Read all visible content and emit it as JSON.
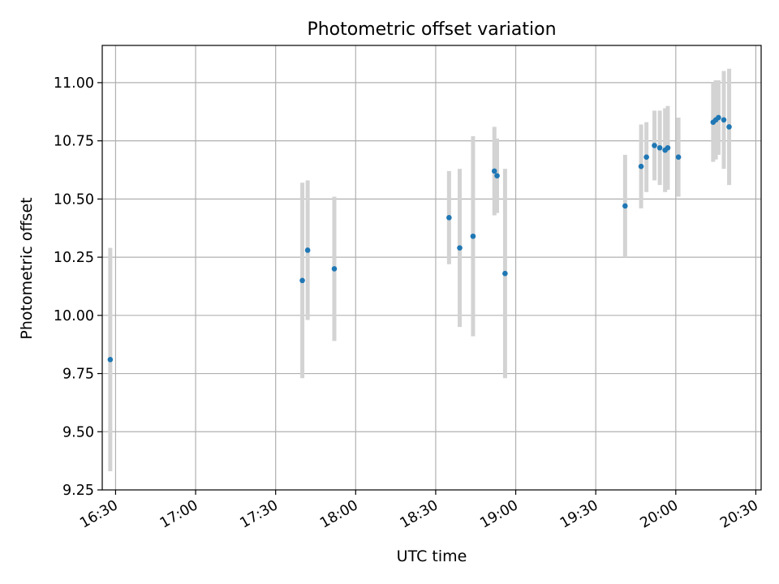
{
  "chart_data": {
    "type": "scatter",
    "title": "Photometric offset variation",
    "xlabel": "UTC time",
    "ylabel": "Photometric offset",
    "x_range_minutes": [
      985,
      1232
    ],
    "ylim": [
      9.25,
      11.16
    ],
    "grid": true,
    "x_ticks": [
      {
        "label": "16:30",
        "minute": 990
      },
      {
        "label": "17:00",
        "minute": 1020
      },
      {
        "label": "17:30",
        "minute": 1050
      },
      {
        "label": "18:00",
        "minute": 1080
      },
      {
        "label": "18:30",
        "minute": 1110
      },
      {
        "label": "19:00",
        "minute": 1140
      },
      {
        "label": "19:30",
        "minute": 1170
      },
      {
        "label": "20:00",
        "minute": 1200
      },
      {
        "label": "20:30",
        "minute": 1230
      }
    ],
    "y_ticks": [
      {
        "label": "9.25",
        "value": 9.25
      },
      {
        "label": "9.50",
        "value": 9.5
      },
      {
        "label": "9.75",
        "value": 9.75
      },
      {
        "label": "10.00",
        "value": 10.0
      },
      {
        "label": "10.25",
        "value": 10.25
      },
      {
        "label": "10.50",
        "value": 10.5
      },
      {
        "label": "10.75",
        "value": 10.75
      },
      {
        "label": "11.00",
        "value": 11.0
      }
    ],
    "marker_color": "#1f77b4",
    "errorbar_color": "#d3d3d3",
    "points": [
      {
        "time": "16:28",
        "y": 9.81,
        "err": 0.48
      },
      {
        "time": "17:40",
        "y": 10.15,
        "err": 0.42
      },
      {
        "time": "17:42",
        "y": 10.28,
        "err": 0.3
      },
      {
        "time": "17:52",
        "y": 10.2,
        "err": 0.31
      },
      {
        "time": "18:35",
        "y": 10.42,
        "err": 0.2
      },
      {
        "time": "18:39",
        "y": 10.29,
        "err": 0.34
      },
      {
        "time": "18:44",
        "y": 10.34,
        "err": 0.43
      },
      {
        "time": "18:52",
        "y": 10.62,
        "err": 0.19
      },
      {
        "time": "18:53",
        "y": 10.6,
        "err": 0.16
      },
      {
        "time": "18:56",
        "y": 10.18,
        "err": 0.45
      },
      {
        "time": "19:41",
        "y": 10.47,
        "err": 0.22
      },
      {
        "time": "19:47",
        "y": 10.64,
        "err": 0.18
      },
      {
        "time": "19:49",
        "y": 10.68,
        "err": 0.15
      },
      {
        "time": "19:52",
        "y": 10.73,
        "err": 0.15
      },
      {
        "time": "19:54",
        "y": 10.72,
        "err": 0.16
      },
      {
        "time": "19:56",
        "y": 10.71,
        "err": 0.18
      },
      {
        "time": "19:57",
        "y": 10.72,
        "err": 0.18
      },
      {
        "time": "20:01",
        "y": 10.68,
        "err": 0.17
      },
      {
        "time": "20:14",
        "y": 10.83,
        "err": 0.17
      },
      {
        "time": "20:15",
        "y": 10.84,
        "err": 0.17
      },
      {
        "time": "20:16",
        "y": 10.85,
        "err": 0.16
      },
      {
        "time": "20:18",
        "y": 10.84,
        "err": 0.21
      },
      {
        "time": "20:20",
        "y": 10.81,
        "err": 0.25
      }
    ]
  }
}
